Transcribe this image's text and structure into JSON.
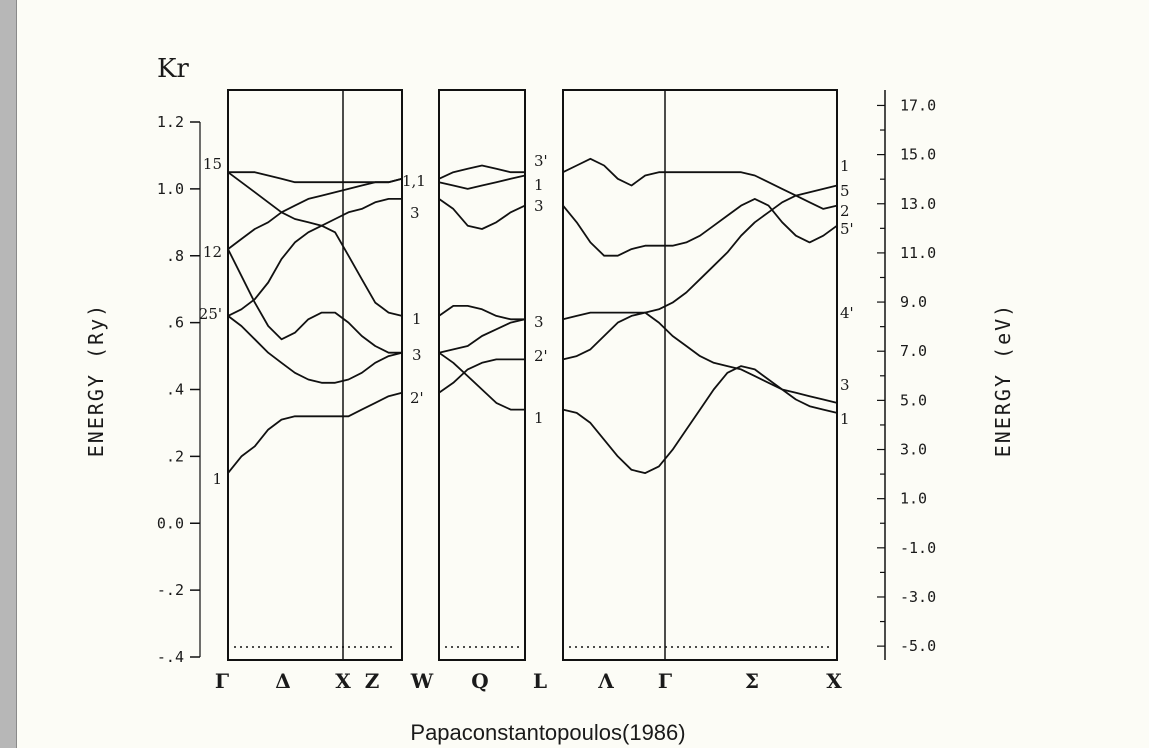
{
  "chart_data": {
    "type": "line",
    "title": "Kr",
    "caption": "Papaconstantopoulos(1986)",
    "ylabel_left": "ENERGY  (Ry)",
    "ylabel_right": "ENERGY  (eV)",
    "ylim_ry": [
      -0.4,
      1.3
    ],
    "yticks_left": [
      {
        "v": -0.4,
        "label": "-.4"
      },
      {
        "v": -0.2,
        "label": "-.2"
      },
      {
        "v": 0.0,
        "label": "0.0"
      },
      {
        "v": 0.2,
        "label": ".2"
      },
      {
        "v": 0.4,
        "label": ".4"
      },
      {
        "v": 0.6,
        "label": ".6"
      },
      {
        "v": 0.8,
        "label": ".8"
      },
      {
        "v": 1.0,
        "label": "1.0"
      },
      {
        "v": 1.2,
        "label": "1.2"
      }
    ],
    "yticks_right": [
      {
        "v": -5.0,
        "label": "-5.0"
      },
      {
        "v": -3.0,
        "label": "-3.0"
      },
      {
        "v": -1.0,
        "label": "-1.0"
      },
      {
        "v": 1.0,
        "label": "1.0"
      },
      {
        "v": 3.0,
        "label": "3.0"
      },
      {
        "v": 5.0,
        "label": "5.0"
      },
      {
        "v": 7.0,
        "label": "7.0"
      },
      {
        "v": 9.0,
        "label": "9.0"
      },
      {
        "v": 11.0,
        "label": "11.0"
      },
      {
        "v": 13.0,
        "label": "13.0"
      },
      {
        "v": 15.0,
        "label": "15.0"
      },
      {
        "v": 17.0,
        "label": "17.0"
      }
    ],
    "k_labels": [
      "Γ",
      "Δ",
      "X",
      "Z",
      "W",
      "Q",
      "L",
      "Λ",
      "Γ",
      "Σ",
      "X"
    ],
    "fermi_level_ry": -0.37,
    "panels": [
      {
        "name": "Γ-X-W",
        "x": [
          0,
          1,
          2,
          3,
          4,
          5,
          6,
          7,
          8,
          9,
          10,
          11,
          12,
          13
        ],
        "bands": [
          [
            0.15,
            0.2,
            0.23,
            0.28,
            0.31,
            0.32,
            0.32,
            0.32,
            0.32,
            0.32,
            0.34,
            0.36,
            0.38,
            0.39
          ],
          [
            0.62,
            0.59,
            0.55,
            0.51,
            0.48,
            0.45,
            0.43,
            0.42,
            0.42,
            0.43,
            0.45,
            0.48,
            0.5,
            0.51
          ],
          [
            0.82,
            0.74,
            0.66,
            0.59,
            0.55,
            0.57,
            0.61,
            0.63,
            0.63,
            0.6,
            0.56,
            0.53,
            0.51,
            0.51
          ],
          [
            0.62,
            0.64,
            0.67,
            0.72,
            0.79,
            0.84,
            0.87,
            0.89,
            0.87,
            0.8,
            0.73,
            0.66,
            0.63,
            0.62
          ],
          [
            0.82,
            0.85,
            0.88,
            0.9,
            0.93,
            0.95,
            0.97,
            0.98,
            0.99,
            1.0,
            1.01,
            1.02,
            1.02,
            1.03
          ],
          [
            1.05,
            1.05,
            1.05,
            1.04,
            1.03,
            1.02,
            1.02,
            1.02,
            1.02,
            1.02,
            1.02,
            1.02,
            1.02,
            1.03
          ],
          [
            1.05,
            1.02,
            0.99,
            0.96,
            0.93,
            0.91,
            0.9,
            0.89,
            0.91,
            0.93,
            0.94,
            0.96,
            0.97,
            0.97
          ]
        ],
        "band_labels_left": [
          "1",
          "25'",
          "12",
          "15"
        ],
        "band_labels_right": [
          "2'",
          "3",
          "1",
          "3",
          "1,1"
        ]
      },
      {
        "name": "W-L",
        "x": [
          0,
          1,
          2,
          3,
          4,
          5,
          6
        ],
        "bands": [
          [
            0.39,
            0.42,
            0.46,
            0.48,
            0.49,
            0.49,
            0.49
          ],
          [
            0.51,
            0.52,
            0.53,
            0.56,
            0.58,
            0.6,
            0.61
          ],
          [
            0.51,
            0.48,
            0.44,
            0.4,
            0.36,
            0.34,
            0.34
          ],
          [
            0.62,
            0.65,
            0.65,
            0.64,
            0.62,
            0.61,
            0.61
          ],
          [
            0.97,
            0.94,
            0.89,
            0.88,
            0.9,
            0.93,
            0.95
          ],
          [
            1.02,
            1.01,
            1.0,
            1.01,
            1.02,
            1.03,
            1.04
          ],
          [
            1.03,
            1.05,
            1.06,
            1.07,
            1.06,
            1.05,
            1.05
          ]
        ],
        "band_labels_right": [
          "1",
          "2'",
          "3",
          "3",
          "1",
          "3'"
        ]
      },
      {
        "name": "L-Γ-X",
        "x": [
          0,
          1,
          2,
          3,
          4,
          5,
          6,
          7,
          8,
          9,
          10,
          11,
          12,
          13,
          14,
          15,
          16,
          17,
          18,
          19,
          20
        ],
        "bands": [
          [
            0.34,
            0.33,
            0.3,
            0.25,
            0.2,
            0.16,
            0.15,
            0.17,
            0.22,
            0.28,
            0.34,
            0.4,
            0.45,
            0.47,
            0.46,
            0.43,
            0.4,
            0.37,
            0.35,
            0.34,
            0.33
          ],
          [
            0.49,
            0.5,
            0.52,
            0.56,
            0.6,
            0.62,
            0.63,
            0.6,
            0.56,
            0.53,
            0.5,
            0.48,
            0.47,
            0.46,
            0.44,
            0.42,
            0.4,
            0.39,
            0.38,
            0.37,
            0.36
          ],
          [
            0.61,
            0.62,
            0.63,
            0.63,
            0.63,
            0.63,
            0.63,
            0.64,
            0.66,
            0.69,
            0.73,
            0.77,
            0.81,
            0.86,
            0.9,
            0.93,
            0.96,
            0.98,
            0.99,
            1.0,
            1.01
          ],
          [
            0.95,
            0.9,
            0.84,
            0.8,
            0.8,
            0.82,
            0.83,
            0.83,
            0.83,
            0.84,
            0.86,
            0.89,
            0.92,
            0.95,
            0.97,
            0.95,
            0.9,
            0.86,
            0.84,
            0.86,
            0.89
          ],
          [
            1.05,
            1.07,
            1.09,
            1.07,
            1.03,
            1.01,
            1.04,
            1.05,
            1.05,
            1.05,
            1.05,
            1.05,
            1.05,
            1.05,
            1.04,
            1.02,
            1.0,
            0.98,
            0.96,
            0.94,
            0.95
          ]
        ],
        "band_labels_right": [
          "1",
          "3",
          "4'",
          "5'",
          "2",
          "5",
          "1"
        ]
      }
    ]
  }
}
